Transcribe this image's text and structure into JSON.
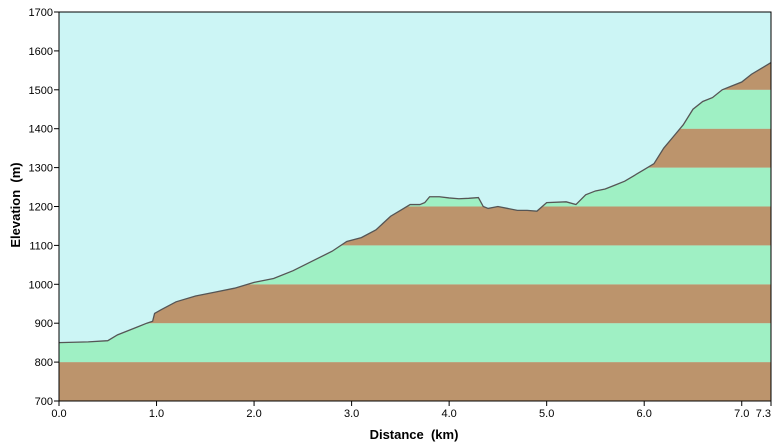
{
  "chart_data": {
    "type": "area",
    "title": "",
    "xlabel": "Distance  (km)",
    "ylabel": "Elevation  (m)",
    "xlim": [
      0,
      7.3
    ],
    "ylim": [
      700,
      1700
    ],
    "x_ticks": [
      {
        "value": 0.0,
        "label": "0.0"
      },
      {
        "value": 1.0,
        "label": "1.0"
      },
      {
        "value": 2.0,
        "label": "2.0"
      },
      {
        "value": 3.0,
        "label": "3.0"
      },
      {
        "value": 4.0,
        "label": "4.0"
      },
      {
        "value": 5.0,
        "label": "5.0"
      },
      {
        "value": 6.0,
        "label": "6.0"
      },
      {
        "value": 7.0,
        "label": "7.0"
      },
      {
        "value": 7.3,
        "label": "7.3"
      }
    ],
    "y_ticks": [
      {
        "value": 700,
        "label": "700"
      },
      {
        "value": 800,
        "label": "800"
      },
      {
        "value": 900,
        "label": "900"
      },
      {
        "value": 1000,
        "label": "1000"
      },
      {
        "value": 1100,
        "label": "1100"
      },
      {
        "value": 1200,
        "label": "1200"
      },
      {
        "value": 1300,
        "label": "1300"
      },
      {
        "value": 1400,
        "label": "1400"
      },
      {
        "value": 1500,
        "label": "1500"
      },
      {
        "value": 1600,
        "label": "1600"
      },
      {
        "value": 1700,
        "label": "1700"
      }
    ],
    "grid": false,
    "legend": "none",
    "colors": {
      "sky": "#ccf5f5",
      "band_brown": "#bc946c",
      "band_green": "#9ff0c4",
      "profile_line": "#555555",
      "axis": "#000000"
    },
    "series": [
      {
        "x": [
          0.0,
          0.3,
          0.5,
          0.6,
          0.7,
          0.8,
          0.9,
          0.96,
          0.98,
          1.05,
          1.2,
          1.4,
          1.6,
          1.8,
          2.0,
          2.2,
          2.4,
          2.6,
          2.8,
          2.95,
          3.1,
          3.25,
          3.4,
          3.5,
          3.6,
          3.7,
          3.75,
          3.8,
          3.9,
          4.0,
          4.1,
          4.2,
          4.3,
          4.35,
          4.4,
          4.5,
          4.6,
          4.7,
          4.8,
          4.9,
          5.0,
          5.2,
          5.3,
          5.4,
          5.5,
          5.6,
          5.7,
          5.8,
          5.9,
          6.0,
          6.1,
          6.2,
          6.3,
          6.4,
          6.5,
          6.6,
          6.7,
          6.8,
          6.9,
          7.0,
          7.1,
          7.2,
          7.3
        ],
        "y": [
          850,
          852,
          855,
          870,
          880,
          890,
          900,
          905,
          925,
          935,
          955,
          970,
          980,
          990,
          1005,
          1015,
          1035,
          1060,
          1085,
          1110,
          1120,
          1140,
          1175,
          1190,
          1205,
          1205,
          1210,
          1225,
          1225,
          1222,
          1220,
          1221,
          1223,
          1200,
          1195,
          1200,
          1195,
          1190,
          1190,
          1188,
          1210,
          1212,
          1205,
          1230,
          1240,
          1245,
          1255,
          1265,
          1280,
          1295,
          1310,
          1350,
          1380,
          1410,
          1450,
          1470,
          1480,
          1500,
          1510,
          1520,
          1540,
          1555,
          1570
        ]
      }
    ]
  }
}
